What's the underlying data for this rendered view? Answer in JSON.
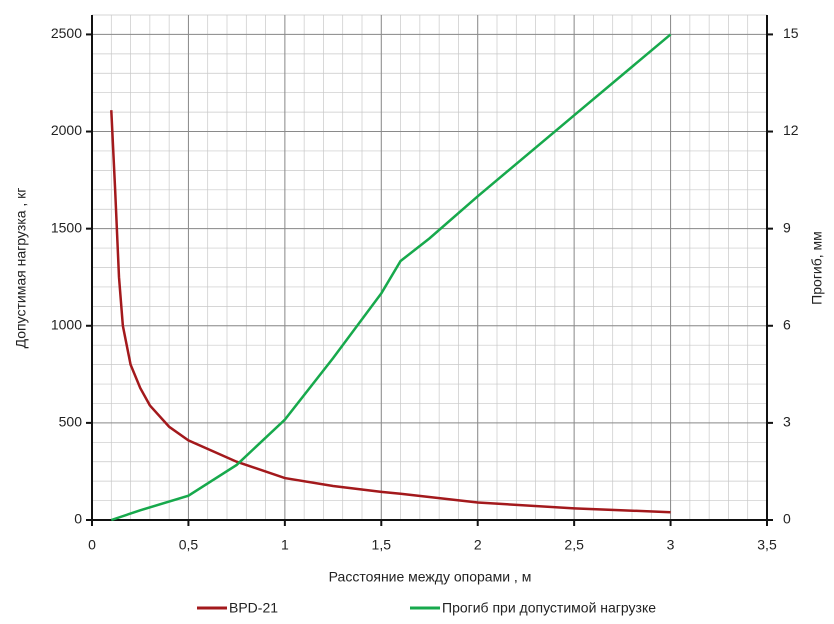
{
  "chart_data": {
    "type": "line",
    "x_label": "Расстояние между опорами , м",
    "y_label": "Допустимая нагрузка , кг",
    "y2_label": "Прогиб, мм",
    "xlim": [
      0,
      3.5
    ],
    "xticks": [
      0,
      {
        "value": 0.5,
        "label": "0,5"
      },
      1,
      {
        "value": 1.5,
        "label": "1,5"
      },
      2,
      {
        "value": 2.5,
        "label": "2,5"
      },
      3,
      {
        "value": 3.5,
        "label": "3,5"
      }
    ],
    "ylim": [
      0,
      2600
    ],
    "yticks": [
      0,
      500,
      1000,
      1500,
      2000,
      2500
    ],
    "y2lim": [
      0,
      15.6
    ],
    "y2ticks": [
      0,
      3,
      6,
      9,
      12,
      15
    ],
    "grid": true,
    "legend": "bottom",
    "series": [
      {
        "name": "BPD-21",
        "color": "#a3191c",
        "x": [
          0.1,
          0.12,
          0.14,
          0.16,
          0.2,
          0.25,
          0.3,
          0.4,
          0.5,
          0.75,
          1,
          1.25,
          1.5,
          1.6,
          2,
          2.5,
          3
        ],
        "values": [
          2110,
          1700,
          1250,
          1000,
          800,
          680,
          590,
          480,
          410,
          300,
          216,
          175,
          145,
          135,
          90,
          60,
          40
        ]
      },
      {
        "name": "Прогиб при допустимой нагрузке",
        "color": "#17a94c",
        "axis": "y2",
        "x": [
          0.1,
          0.25,
          0.5,
          0.75,
          1,
          1.25,
          1.5,
          1.6,
          1.75,
          2,
          2.5,
          3
        ],
        "values": [
          0,
          0.3,
          0.75,
          1.7,
          3.1,
          5,
          7,
          8,
          8.7,
          10,
          12.5,
          15
        ]
      }
    ]
  }
}
